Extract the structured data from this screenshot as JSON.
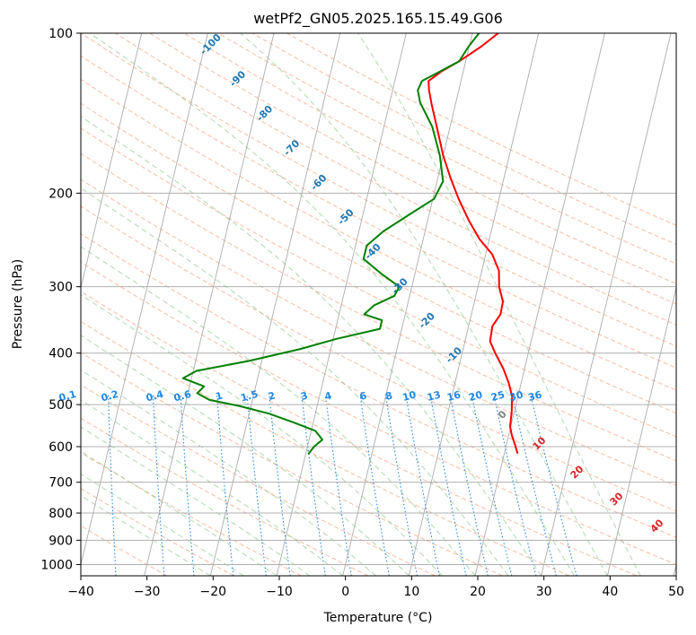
{
  "chart_data": {
    "type": "line",
    "title": "wetPf2_GN05.2025.165.15.49.G06",
    "xlabel": "Temperature (°C)",
    "ylabel": "Pressure (hPa)",
    "xlim": [
      -40,
      50
    ],
    "ylim": [
      1050,
      100
    ],
    "y_scale": "log",
    "grid": true,
    "x_ticks": [
      "−40",
      "−30",
      "−20",
      "−10",
      "0",
      "10",
      "20",
      "30",
      "40",
      "50"
    ],
    "y_ticks": [
      "100",
      "200",
      "300",
      "400",
      "500",
      "600",
      "700",
      "800",
      "900",
      "1000"
    ],
    "series": [
      {
        "color": "#ff0000",
        "points": [
          {
            "p": 618,
            "t": 22.0
          },
          {
            "p": 595,
            "t": 21.3
          },
          {
            "p": 572,
            "t": 20.5
          },
          {
            "p": 550,
            "t": 19.9
          },
          {
            "p": 515,
            "t": 19.6
          },
          {
            "p": 482,
            "t": 19.1
          },
          {
            "p": 455,
            "t": 18.1
          },
          {
            "p": 428,
            "t": 16.8
          },
          {
            "p": 400,
            "t": 15.0
          },
          {
            "p": 380,
            "t": 13.8
          },
          {
            "p": 356,
            "t": 13.6
          },
          {
            "p": 338,
            "t": 14.4
          },
          {
            "p": 320,
            "t": 14.3
          },
          {
            "p": 300,
            "t": 13.2
          },
          {
            "p": 280,
            "t": 12.6
          },
          {
            "p": 261,
            "t": 11.0
          },
          {
            "p": 244,
            "t": 8.5
          },
          {
            "p": 225,
            "t": 6.2
          },
          {
            "p": 205,
            "t": 3.9
          },
          {
            "p": 188,
            "t": 2.0
          },
          {
            "p": 170,
            "t": 0.0
          },
          {
            "p": 152,
            "t": -1.8
          },
          {
            "p": 136,
            "t": -3.6
          },
          {
            "p": 128,
            "t": -4.5
          },
          {
            "p": 123,
            "t": -4.9
          },
          {
            "p": 118,
            "t": -3.3
          },
          {
            "p": 113,
            "t": -1.0
          },
          {
            "p": 106,
            "t": 1.8
          },
          {
            "p": 100,
            "t": 3.9
          }
        ]
      },
      {
        "color": "#008000",
        "points": [
          {
            "p": 620,
            "t": -9.6
          },
          {
            "p": 600,
            "t": -9.0
          },
          {
            "p": 582,
            "t": -8.0
          },
          {
            "p": 560,
            "t": -9.4
          },
          {
            "p": 540,
            "t": -13.0
          },
          {
            "p": 520,
            "t": -17.0
          },
          {
            "p": 503,
            "t": -21.8
          },
          {
            "p": 490,
            "t": -26.5
          },
          {
            "p": 476,
            "t": -28.6
          },
          {
            "p": 462,
            "t": -27.8
          },
          {
            "p": 446,
            "t": -31.3
          },
          {
            "p": 432,
            "t": -29.5
          },
          {
            "p": 414,
            "t": -22.0
          },
          {
            "p": 393,
            "t": -14.6
          },
          {
            "p": 376,
            "t": -9.5
          },
          {
            "p": 360,
            "t": -3.3
          },
          {
            "p": 347,
            "t": -3.3
          },
          {
            "p": 338,
            "t": -6.2
          },
          {
            "p": 325,
            "t": -5.0
          },
          {
            "p": 312,
            "t": -2.3
          },
          {
            "p": 300,
            "t": -1.9
          },
          {
            "p": 284,
            "t": -5.0
          },
          {
            "p": 266,
            "t": -8.3
          },
          {
            "p": 251,
            "t": -8.3
          },
          {
            "p": 236,
            "t": -6.3
          },
          {
            "p": 220,
            "t": -3.1
          },
          {
            "p": 205,
            "t": 0.2
          },
          {
            "p": 190,
            "t": 0.9
          },
          {
            "p": 170,
            "t": -0.5
          },
          {
            "p": 150,
            "t": -2.7
          },
          {
            "p": 135,
            "t": -5.4
          },
          {
            "p": 128,
            "t": -6.2
          },
          {
            "p": 123,
            "t": -5.9
          },
          {
            "p": 118,
            "t": -3.5
          },
          {
            "p": 113,
            "t": -1.0
          },
          {
            "p": 106,
            "t": -0.1
          },
          {
            "p": 100,
            "t": 1.0
          }
        ]
      }
    ],
    "mixing_ratio_labels": [
      "0.1",
      "0.2",
      "0.4",
      "0.6",
      "1",
      "1.5",
      "2",
      "3",
      "4",
      "6",
      "8",
      "10",
      "13",
      "16",
      "20",
      "25",
      "30",
      "36"
    ],
    "dry_adiabat_labels": [
      "-100",
      "-90",
      "-80",
      "-70",
      "-60",
      "-50",
      "-40",
      "-30",
      "-20",
      "-10"
    ],
    "moist_adiabat_labels": [
      "0",
      "10",
      "20",
      "30",
      "40"
    ]
  },
  "colors": {
    "temperature": "#ff0000",
    "dewpoint": "#008000",
    "dry_adiabat": "#f4a582",
    "moist_adiabat": "#8fc98f",
    "mixing_ratio": "#1e88e5",
    "isotherm": "#9e9e9e",
    "dry_label": "#1f77b4",
    "moist_label": "#d62728",
    "zero_label": "#808080"
  }
}
